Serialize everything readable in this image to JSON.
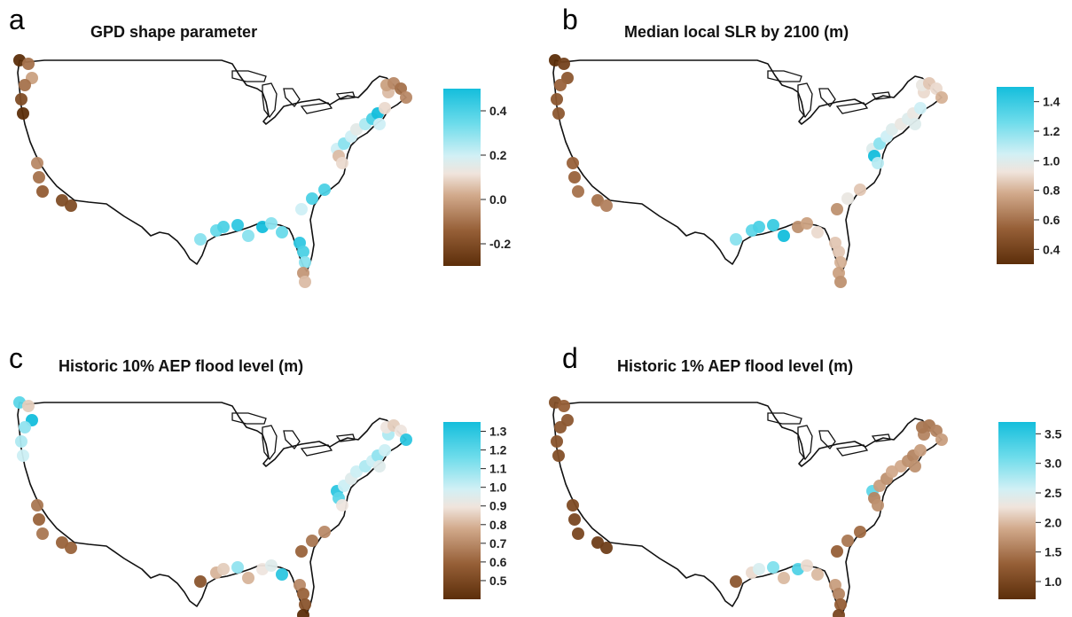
{
  "panels": [
    {
      "letter": "a",
      "title": "GPD shape parameter",
      "colorbar": {
        "ticks": [
          "0.4",
          "0.2",
          "0.0",
          "-0.2"
        ]
      },
      "station_values": [
        -0.3,
        -0.1,
        0.0,
        -0.1,
        -0.2,
        -0.3,
        -0.05,
        -0.1,
        -0.15,
        -0.2,
        -0.2,
        0.3,
        0.35,
        0.4,
        0.45,
        0.3,
        0.5,
        0.3,
        0.35,
        0.45,
        0.4,
        0.3,
        -0.02,
        0.05,
        0.2,
        0.4,
        0.4,
        0.2,
        0.05,
        0.1,
        0.3,
        0.2,
        0.15,
        0.25,
        0.4,
        0.5,
        0.2,
        0.1,
        0.05,
        0.0,
        -0.05,
        -0.1,
        -0.05
      ]
    },
    {
      "letter": "b",
      "title": "Median local SLR by 2100 (m)",
      "colorbar": {
        "ticks": [
          "1.4",
          "1.2",
          "1.0",
          "0.8",
          "0.6",
          "0.4"
        ]
      },
      "station_values": [
        0.3,
        0.4,
        0.5,
        0.55,
        0.5,
        0.5,
        0.55,
        0.55,
        0.6,
        0.6,
        0.65,
        1.2,
        1.3,
        1.35,
        1.4,
        1.5,
        0.7,
        0.75,
        0.9,
        0.85,
        0.85,
        0.8,
        0.75,
        0.7,
        0.7,
        0.95,
        0.85,
        1.0,
        1.5,
        1.1,
        1.2,
        1.05,
        1.0,
        0.95,
        1.0,
        0.95,
        1.0,
        1.05,
        0.9,
        0.95,
        0.85,
        0.9,
        0.8
      ]
    },
    {
      "letter": "c",
      "title": "Historic 10% AEP flood level (m)",
      "colorbar": {
        "ticks": [
          "1.3",
          "1.2",
          "1.1",
          "1.0",
          "0.9",
          "0.8",
          "0.7",
          "0.6",
          "0.5"
        ]
      },
      "station_values": [
        1.2,
        0.85,
        1.35,
        1.1,
        1.05,
        1.0,
        0.65,
        0.6,
        0.65,
        0.6,
        0.6,
        0.55,
        0.8,
        0.85,
        1.1,
        0.8,
        0.9,
        0.95,
        1.3,
        0.7,
        0.6,
        0.55,
        0.4,
        0.5,
        0.6,
        0.65,
        0.7,
        1.3,
        1.2,
        0.9,
        1.0,
        0.95,
        1.0,
        1.05,
        1.0,
        1.1,
        0.95,
        1.0,
        1.05,
        0.9,
        0.85,
        0.9,
        1.3
      ]
    },
    {
      "letter": "d",
      "title": "Historic 1% AEP flood level (m)",
      "colorbar": {
        "ticks": [
          "3.5",
          "3.0",
          "2.5",
          "2.0",
          "1.5",
          "1.0"
        ]
      },
      "station_values": [
        1.1,
        1.3,
        1.2,
        1.2,
        1.15,
        1.1,
        1.05,
        1.0,
        1.0,
        0.9,
        0.9,
        1.2,
        2.2,
        2.5,
        3.0,
        2.0,
        3.3,
        2.2,
        2.0,
        1.8,
        1.6,
        1.3,
        1.0,
        1.2,
        1.3,
        1.5,
        1.4,
        3.2,
        1.6,
        1.7,
        1.8,
        1.7,
        1.9,
        1.9,
        1.7,
        1.6,
        1.7,
        1.8,
        1.6,
        1.5,
        1.5,
        1.6,
        1.8
      ]
    }
  ]
}
